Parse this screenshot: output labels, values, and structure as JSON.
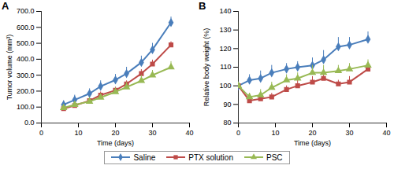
{
  "chart_data": [
    {
      "type": "line",
      "title": "A",
      "xlabel": "Time (days)",
      "ylabel": "Tumor volume (mm³)",
      "x": [
        6,
        9,
        13,
        16,
        20,
        23,
        27,
        30,
        35
      ],
      "xlim": [
        0,
        40
      ],
      "xticks": [
        0,
        10,
        20,
        30,
        40
      ],
      "ylim": [
        0,
        700
      ],
      "yticks": [
        {
          "value": 0,
          "label": "0.0"
        },
        {
          "value": 100,
          "label": "100.0"
        },
        {
          "value": 200,
          "label": "200.0"
        },
        {
          "value": 300,
          "label": "300.0"
        },
        {
          "value": 400,
          "label": "400.0"
        },
        {
          "value": 500,
          "label": "500.0"
        },
        {
          "value": 600,
          "label": "600.0"
        },
        {
          "value": 700,
          "label": "700.0"
        }
      ],
      "grid": false,
      "legend": "bottom",
      "series": [
        {
          "name": "Saline",
          "color": "#4a7ebb",
          "marker": "diamond",
          "values": [
            115,
            145,
            185,
            230,
            270,
            310,
            380,
            460,
            630
          ],
          "errors": [
            25,
            30,
            30,
            35,
            35,
            40,
            40,
            40,
            35
          ]
        },
        {
          "name": "PTX solution",
          "color": "#be4b48",
          "marker": "square",
          "values": [
            90,
            110,
            140,
            175,
            205,
            245,
            310,
            370,
            490
          ],
          "errors": [
            10,
            15,
            15,
            20,
            20,
            20,
            25,
            25,
            20
          ]
        },
        {
          "name": "PSC",
          "color": "#98b954",
          "marker": "triangle",
          "values": [
            95,
            115,
            135,
            160,
            195,
            225,
            265,
            300,
            350
          ],
          "errors": [
            15,
            20,
            25,
            20,
            25,
            30,
            35,
            30,
            35
          ]
        }
      ]
    },
    {
      "type": "line",
      "title": "B",
      "xlabel": "Time (days)",
      "ylabel": "Relative body weight (%)",
      "x": [
        0,
        3,
        6,
        9,
        13,
        16,
        20,
        23,
        27,
        30,
        35
      ],
      "xlim": [
        0,
        40
      ],
      "xticks": [
        0,
        10,
        20,
        30,
        40
      ],
      "ylim": [
        80,
        140
      ],
      "yticks": [
        80,
        90,
        100,
        110,
        120,
        130,
        140
      ],
      "grid": false,
      "legend": "bottom",
      "series": [
        {
          "name": "Saline",
          "color": "#4a7ebb",
          "marker": "diamond",
          "values": [
            100,
            103,
            104,
            107,
            109,
            110,
            111,
            114,
            121,
            122,
            125
          ],
          "errors": [
            0,
            3,
            4,
            4,
            3,
            3,
            4,
            5,
            5,
            4,
            4
          ]
        },
        {
          "name": "PTX solution",
          "color": "#be4b48",
          "marker": "square",
          "values": [
            100,
            92,
            93,
            94,
            98,
            100,
            102,
            104,
            101,
            102,
            109
          ],
          "errors": [
            0,
            2,
            2,
            2,
            2,
            3,
            3,
            3,
            2,
            3,
            2
          ]
        },
        {
          "name": "PSC",
          "color": "#98b954",
          "marker": "triangle",
          "values": [
            100,
            94,
            95,
            99,
            103,
            104,
            107,
            107,
            108,
            109,
            111
          ],
          "errors": [
            0,
            2,
            3,
            3,
            3,
            3,
            4,
            4,
            3,
            3,
            3
          ]
        }
      ]
    }
  ]
}
